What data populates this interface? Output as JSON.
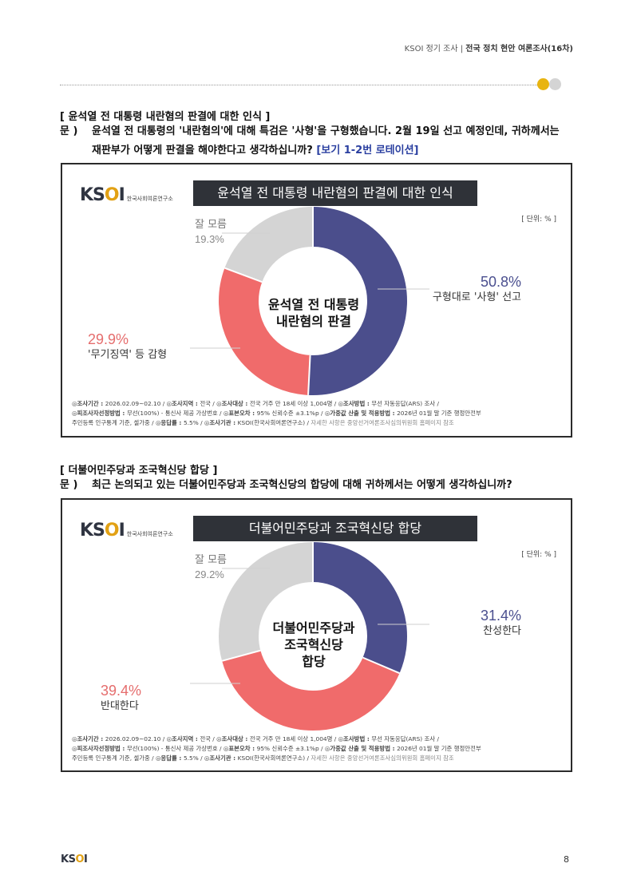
{
  "header": {
    "prefix": "KSOI 정기 조사 | ",
    "title": "전국 정치 현안 여론조사(16차)"
  },
  "sections": [
    {
      "section_title": "[ 윤석열 전 대통령 내란혐의 판결에 대한 인식 ]",
      "q_prefix": "문 )",
      "q_line1": "윤석열 전 대통령의 '내란혐의'에 대해 특검은 '사형'을 구형했습니다. 2월 19일 선고 예정인데, 귀하께서는",
      "q_line2": "재판부가 어떻게 판결을 해야한다고 생각하십니까?",
      "q_note": "[보기 1-2번 로테이션]",
      "chart_title": "윤석열 전 대통령 내란혐의 판결에 대한 인식",
      "center_lines": [
        "윤석열 전 대통령",
        "내란혐의 판결"
      ],
      "unit": "[ 단위: % ]",
      "slices": [
        {
          "label": "구형대로 '사형' 선고",
          "value_text": "50.8%"
        },
        {
          "label": "'무기징역' 등 감형",
          "value_text": "29.9%"
        },
        {
          "label": "잘 모름",
          "value_text": "19.3%"
        }
      ],
      "footnote": {
        "l1": [
          {
            "k": "◎조사기간 : ",
            "v": "2026.02.09~02.10 / "
          },
          {
            "k": "◎조사지역 : ",
            "v": "전국 / "
          },
          {
            "k": "◎조사대상 : ",
            "v": "전국 거주 만 18세 이상 1,004명 / "
          },
          {
            "k": "◎조사방법 : ",
            "v": "무선 자동응답(ARS) 조사 /"
          }
        ],
        "l2": [
          {
            "k": "◎피조사자선정방법 : ",
            "v": "무선(100%) - 통신사 제공 가상번호 / "
          },
          {
            "k": "◎표본오차 : ",
            "v": "95% 신뢰수준 ±3.1%p / "
          },
          {
            "k": "◎가중값 산출 및 적용방법 : ",
            "v": "2026년 01월 말 기준 행정안전부"
          }
        ],
        "l3": [
          {
            "k": "",
            "v": "주민등록 인구통계 기준, 셀가중 / "
          },
          {
            "k": "◎응답률 : ",
            "v": "5.5% / "
          },
          {
            "k": "◎조사기관 : ",
            "v": "KSOI(한국사회여론연구소) / "
          }
        ],
        "l3_muted": "자세한 사항은 중앙선거여론조사심의위원회 홈페이지 참조"
      }
    },
    {
      "section_title": "[ 더불어민주당과 조국혁신당 합당 ]",
      "q_prefix": "문 )",
      "q_line1": "최근 논의되고 있는 더불어민주당과 조국혁신당의 합당에 대해 귀하께서는 어떻게 생각하십니까?",
      "chart_title": "더불어민주당과 조국혁신당 합당",
      "center_lines": [
        "더불어민주당과",
        "조국혁신당",
        "합당"
      ],
      "unit": "[ 단위: % ]",
      "slices": [
        {
          "label": "찬성한다",
          "value_text": "31.4%"
        },
        {
          "label": "반대한다",
          "value_text": "39.4%"
        },
        {
          "label": "잘 모름",
          "value_text": "29.2%"
        }
      ],
      "footnote": {
        "l1": [
          {
            "k": "◎조사기간 : ",
            "v": "2026.02.09~02.10 / "
          },
          {
            "k": "◎조사지역 : ",
            "v": "전국 / "
          },
          {
            "k": "◎조사대상 : ",
            "v": "전국 거주 만 18세 이상 1,004명 / "
          },
          {
            "k": "◎조사방법 : ",
            "v": "무선 자동응답(ARS) 조사 /"
          }
        ],
        "l2": [
          {
            "k": "◎피조사자선정방법 : ",
            "v": "무선(100%) - 통신사 제공 가상번호 / "
          },
          {
            "k": "◎표본오차 : ",
            "v": "95% 신뢰수준 ±3.1%p / "
          },
          {
            "k": "◎가중값 산출 및 적용방법 : ",
            "v": "2026년 01월 말 기준 행정안전부"
          }
        ],
        "l3": [
          {
            "k": "",
            "v": "주민등록 인구통계 기준, 셀가중 / "
          },
          {
            "k": "◎응답률 : ",
            "v": "5.5% / "
          },
          {
            "k": "◎조사기관 : ",
            "v": "KSOI(한국사회여론연구소) / "
          }
        ],
        "l3_muted": "자세한 사항은 중앙선거여론조사심의위원회 홈페이지 참조"
      }
    }
  ],
  "chart_data": [
    {
      "type": "pie",
      "title": "윤석열 전 대통령 내란혐의 판결에 대한 인식",
      "categories": [
        "구형대로 '사형' 선고",
        "'무기징역' 등 감형",
        "잘 모름"
      ],
      "values": [
        50.8,
        29.9,
        19.3
      ],
      "colors": [
        "#4b4e8c",
        "#f06b6b",
        "#d4d4d4"
      ],
      "donut": true
    },
    {
      "type": "pie",
      "title": "더불어민주당과 조국혁신당 합당",
      "categories": [
        "찬성한다",
        "반대한다",
        "잘 모름"
      ],
      "values": [
        31.4,
        39.4,
        29.2
      ],
      "colors": [
        "#4b4e8c",
        "#f06b6b",
        "#d4d4d4"
      ],
      "donut": true
    }
  ],
  "logo": {
    "main_a": "KS",
    "main_o": "O",
    "main_b": "I",
    "sub": "한국사회여론연구소"
  },
  "footer": {
    "logo_a": "KS",
    "logo_o": "O",
    "logo_b": "I",
    "page": "8"
  }
}
